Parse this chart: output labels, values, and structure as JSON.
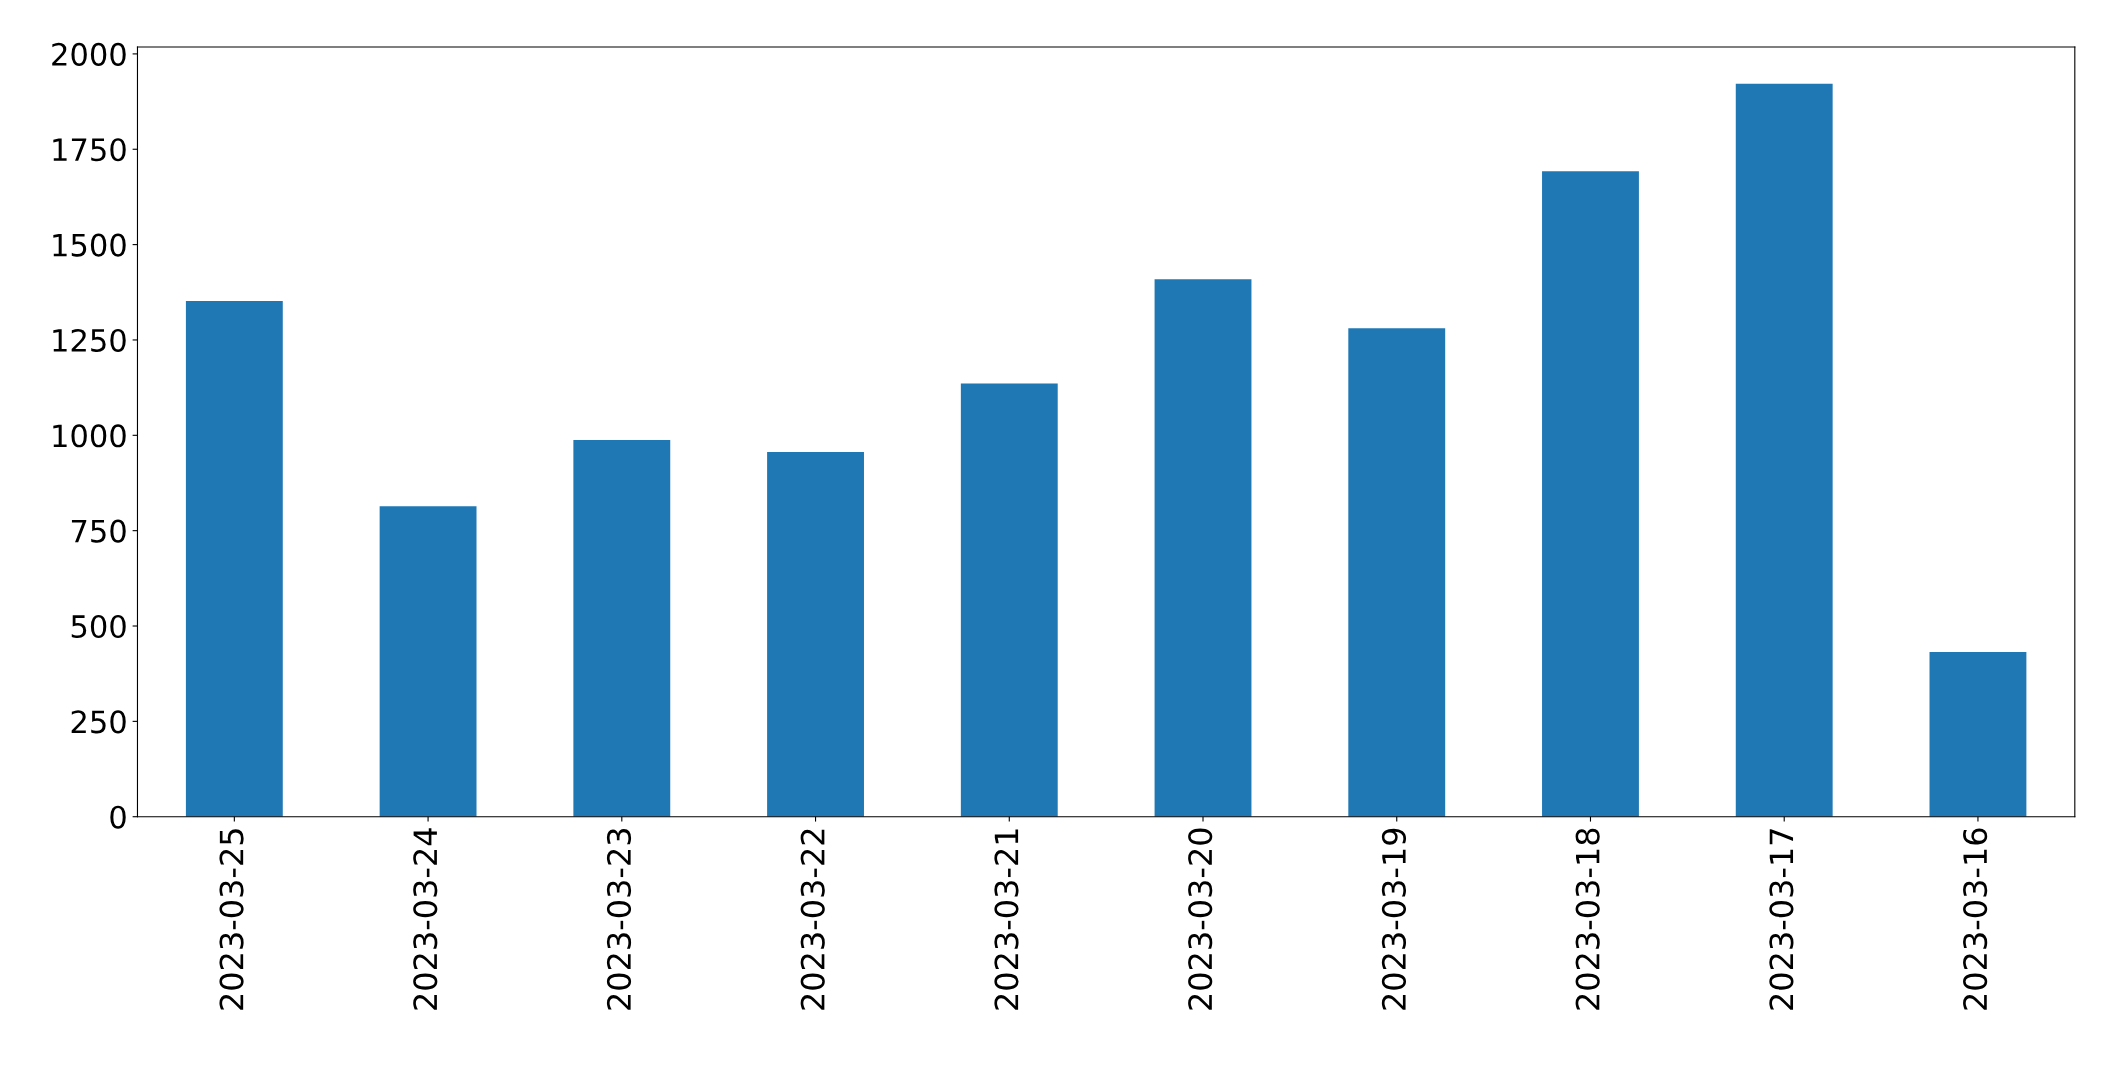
{
  "chart_data": {
    "type": "bar",
    "categories": [
      "2023-03-25",
      "2023-03-24",
      "2023-03-23",
      "2023-03-22",
      "2023-03-21",
      "2023-03-20",
      "2023-03-19",
      "2023-03-18",
      "2023-03-17",
      "2023-03-16"
    ],
    "values": [
      1352,
      814,
      988,
      956,
      1136,
      1409,
      1281,
      1692,
      1922,
      432
    ],
    "color": "#1f77b4",
    "ylim": [
      0,
      2018
    ],
    "yticks": [
      0,
      250,
      500,
      750,
      1000,
      1250,
      1500,
      1750,
      2000
    ],
    "grid": false
  }
}
